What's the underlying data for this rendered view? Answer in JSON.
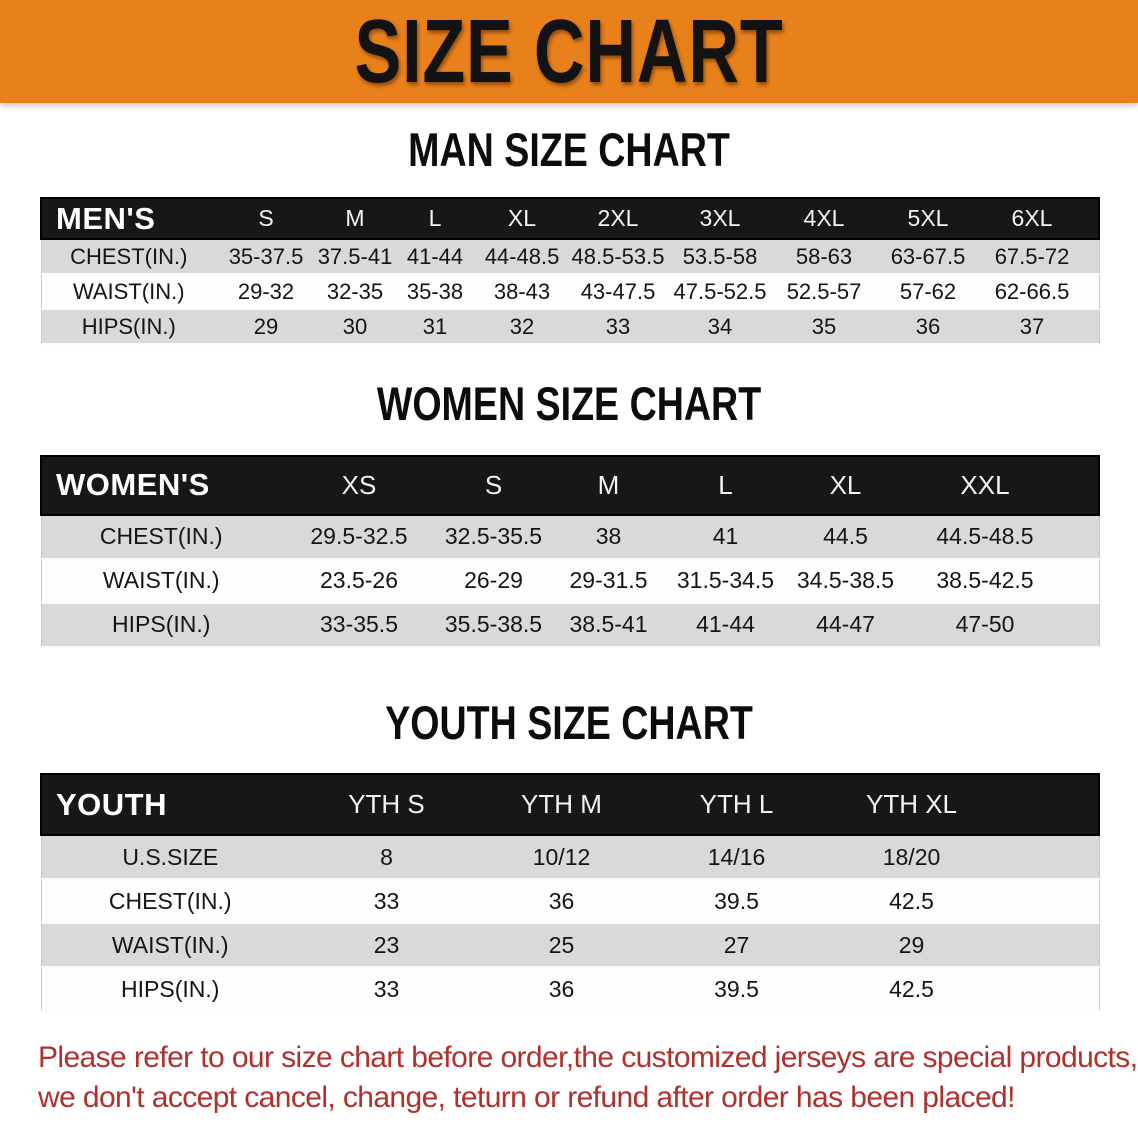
{
  "banner": {
    "title": "SIZE CHART"
  },
  "sections": [
    {
      "id": "men",
      "heading": "MAN SIZE CHART",
      "table": {
        "header": [
          "MEN'S",
          "S",
          "M",
          "L",
          "XL",
          "2XL",
          "3XL",
          "4XL",
          "5XL",
          "6XL"
        ],
        "rows": [
          [
            "CHEST(IN.)",
            "35-37.5",
            "37.5-41",
            "41-44",
            "44-48.5",
            "48.5-53.5",
            "53.5-58",
            "58-63",
            "63-67.5",
            "67.5-72"
          ],
          [
            "WAIST(IN.)",
            "29-32",
            "32-35",
            "35-38",
            "38-43",
            "43-47.5",
            "47.5-52.5",
            "52.5-57",
            "57-62",
            "62-66.5"
          ],
          [
            "HIPS(IN.)",
            "29",
            "30",
            "31",
            "32",
            "33",
            "34",
            "35",
            "36",
            "37"
          ]
        ]
      }
    },
    {
      "id": "women",
      "heading": "WOMEN SIZE CHART",
      "table": {
        "header": [
          "WOMEN'S",
          "XS",
          "S",
          "M",
          "L",
          "XL",
          "XXL"
        ],
        "rows": [
          [
            "CHEST(IN.)",
            "29.5-32.5",
            "32.5-35.5",
            "38",
            "41",
            "44.5",
            "44.5-48.5"
          ],
          [
            "WAIST(IN.)",
            "23.5-26",
            "26-29",
            "29-31.5",
            "31.5-34.5",
            "34.5-38.5",
            "38.5-42.5"
          ],
          [
            "HIPS(IN.)",
            "33-35.5",
            "35.5-38.5",
            "38.5-41",
            "41-44",
            "44-47",
            "47-50"
          ]
        ]
      }
    },
    {
      "id": "youth",
      "heading": "YOUTH SIZE CHART",
      "table": {
        "header": [
          "YOUTH",
          "YTH S",
          "YTH M",
          "YTH L",
          "YTH XL"
        ],
        "rows": [
          [
            "U.S.SIZE",
            "8",
            "10/12",
            "14/16",
            "18/20"
          ],
          [
            "CHEST(IN.)",
            "33",
            "36",
            "39.5",
            "42.5"
          ],
          [
            "WAIST(IN.)",
            "23",
            "25",
            "27",
            "29"
          ],
          [
            "HIPS(IN.)",
            "33",
            "36",
            "39.5",
            "42.5"
          ]
        ]
      }
    }
  ],
  "footer": {
    "line1": "Please refer to our size chart before order,the customized jerseys are special products,",
    "line2": "we don't accept cancel, change, teturn or refund after order has been placed!"
  },
  "colors": {
    "banner_background": "#e8811b",
    "table_header_background": "#171717",
    "row_alternate_gray": "#d9d9d9",
    "footer_text_red": "#b1302c"
  }
}
